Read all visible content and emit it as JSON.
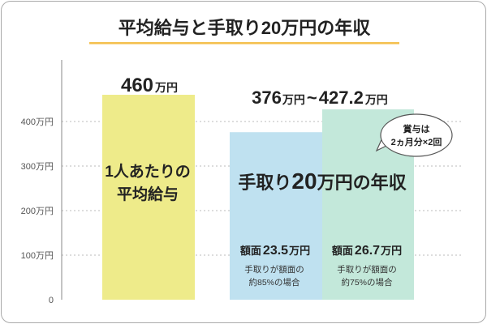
{
  "chart_data": {
    "type": "bar",
    "title": "平均給与と手取り20万円の年収",
    "unit": "万円",
    "ylim": [
      0,
      460
    ],
    "yticks": [
      {
        "value": 0,
        "label": "0"
      },
      {
        "value": 100,
        "label": "100万円"
      },
      {
        "value": 200,
        "label": "200万円"
      },
      {
        "value": 300,
        "label": "300万円"
      },
      {
        "value": 400,
        "label": "400万円"
      }
    ],
    "grid": true,
    "colors": {
      "average": "#eeeb8a",
      "net85": "#bfe1f0",
      "net75": "#c3e8da",
      "axis": "#888888",
      "grid": "#bbbbbb",
      "title_underline": "#f4c04e"
    },
    "bars": [
      {
        "key": "average",
        "value": 460,
        "value_text": "460",
        "value_unit": "万円",
        "label_lines": [
          "1人あたりの",
          "平均給与"
        ]
      },
      {
        "key": "net85",
        "value": 376,
        "amount_prefix": "額面",
        "amount_text": "23.5",
        "amount_unit": "万円",
        "note_lines": [
          "手取りが額面の",
          "約85%の場合"
        ]
      },
      {
        "key": "net75",
        "value": 427.2,
        "amount_prefix": "額面",
        "amount_text": "26.7",
        "amount_unit": "万円",
        "note_lines": [
          "手取りが額面の",
          "約75%の場合"
        ]
      }
    ],
    "range_label": {
      "from": "376",
      "unit1": "万円",
      "tilde": "~",
      "to": "427.2",
      "unit2": "万円"
    },
    "group_label": {
      "part1": "手取り",
      "part2": "20",
      "part3": "万円の年収"
    },
    "bubble_lines": [
      "賞与は",
      "2ヵ月分×2回"
    ]
  }
}
